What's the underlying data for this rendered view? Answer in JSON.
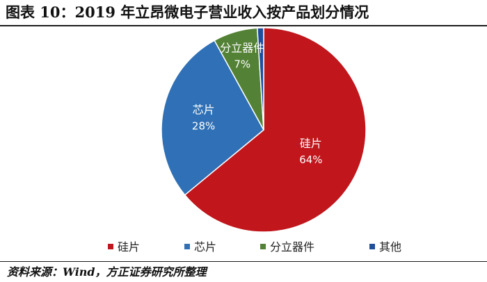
{
  "title": "图表 10：2019 年立昂微电子营业收入按产品划分情况",
  "source": "资料来源：Wind，方正证券研究所整理",
  "chart_data": {
    "type": "pie",
    "title": "",
    "slices": [
      {
        "label": "硅片",
        "value": 64,
        "value_label": "64%",
        "color": "#c0161c"
      },
      {
        "label": "芯片",
        "value": 28,
        "value_label": "28%",
        "color": "#2f70b6"
      },
      {
        "label": "分立器件",
        "value": 7,
        "value_label": "7%",
        "color": "#538135"
      },
      {
        "label": "其他",
        "value": 1,
        "value_label": "",
        "color": "#1f4e9c"
      }
    ],
    "legend_position": "bottom"
  }
}
